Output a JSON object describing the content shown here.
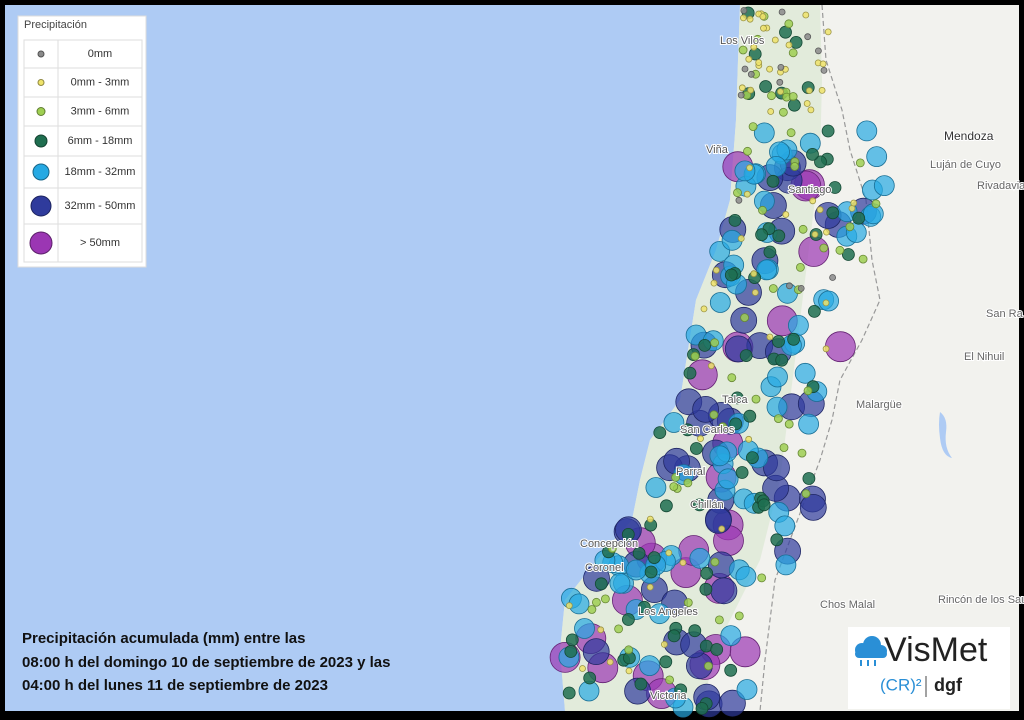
{
  "legend": {
    "title": "Precipitación",
    "items": [
      {
        "label": "0mm",
        "color": "#8a8a8a"
      },
      {
        "label": "0mm - 3mm",
        "color": "#efe36a"
      },
      {
        "label": "3mm - 6mm",
        "color": "#9fcf52"
      },
      {
        "label": "6mm - 18mm",
        "color": "#1f6e50"
      },
      {
        "label": "18mm - 32mm",
        "color": "#26a9e3"
      },
      {
        "label": "32mm - 50mm",
        "color": "#2f3b9c"
      },
      {
        "label": "> 50mm",
        "color": "#9b36b3"
      }
    ]
  },
  "places": [
    "Los Vilos",
    "Viña",
    "Santiago",
    "Mendoza",
    "Luján de Cuyo",
    "Rivadavia",
    "San Ra",
    "El Nihuil",
    "Malargüe",
    "Concepción",
    "Coronel",
    "Los Angeles",
    "Victoria",
    "Chos Malal",
    "Rincón de los Sauces",
    "Talca",
    "Chillán",
    "San Carlos",
    "Parral"
  ],
  "caption": {
    "lines": [
      "Precipitación acumulada (mm) entre las",
      "08:00 h del domingo 10 de septiembre de 2023 y las",
      "04:00 h del lunes 11 de septiembre de 2023"
    ]
  },
  "logo": {
    "name": "VisMet",
    "cr": "(CR)²",
    "dgf": "dgf"
  }
}
